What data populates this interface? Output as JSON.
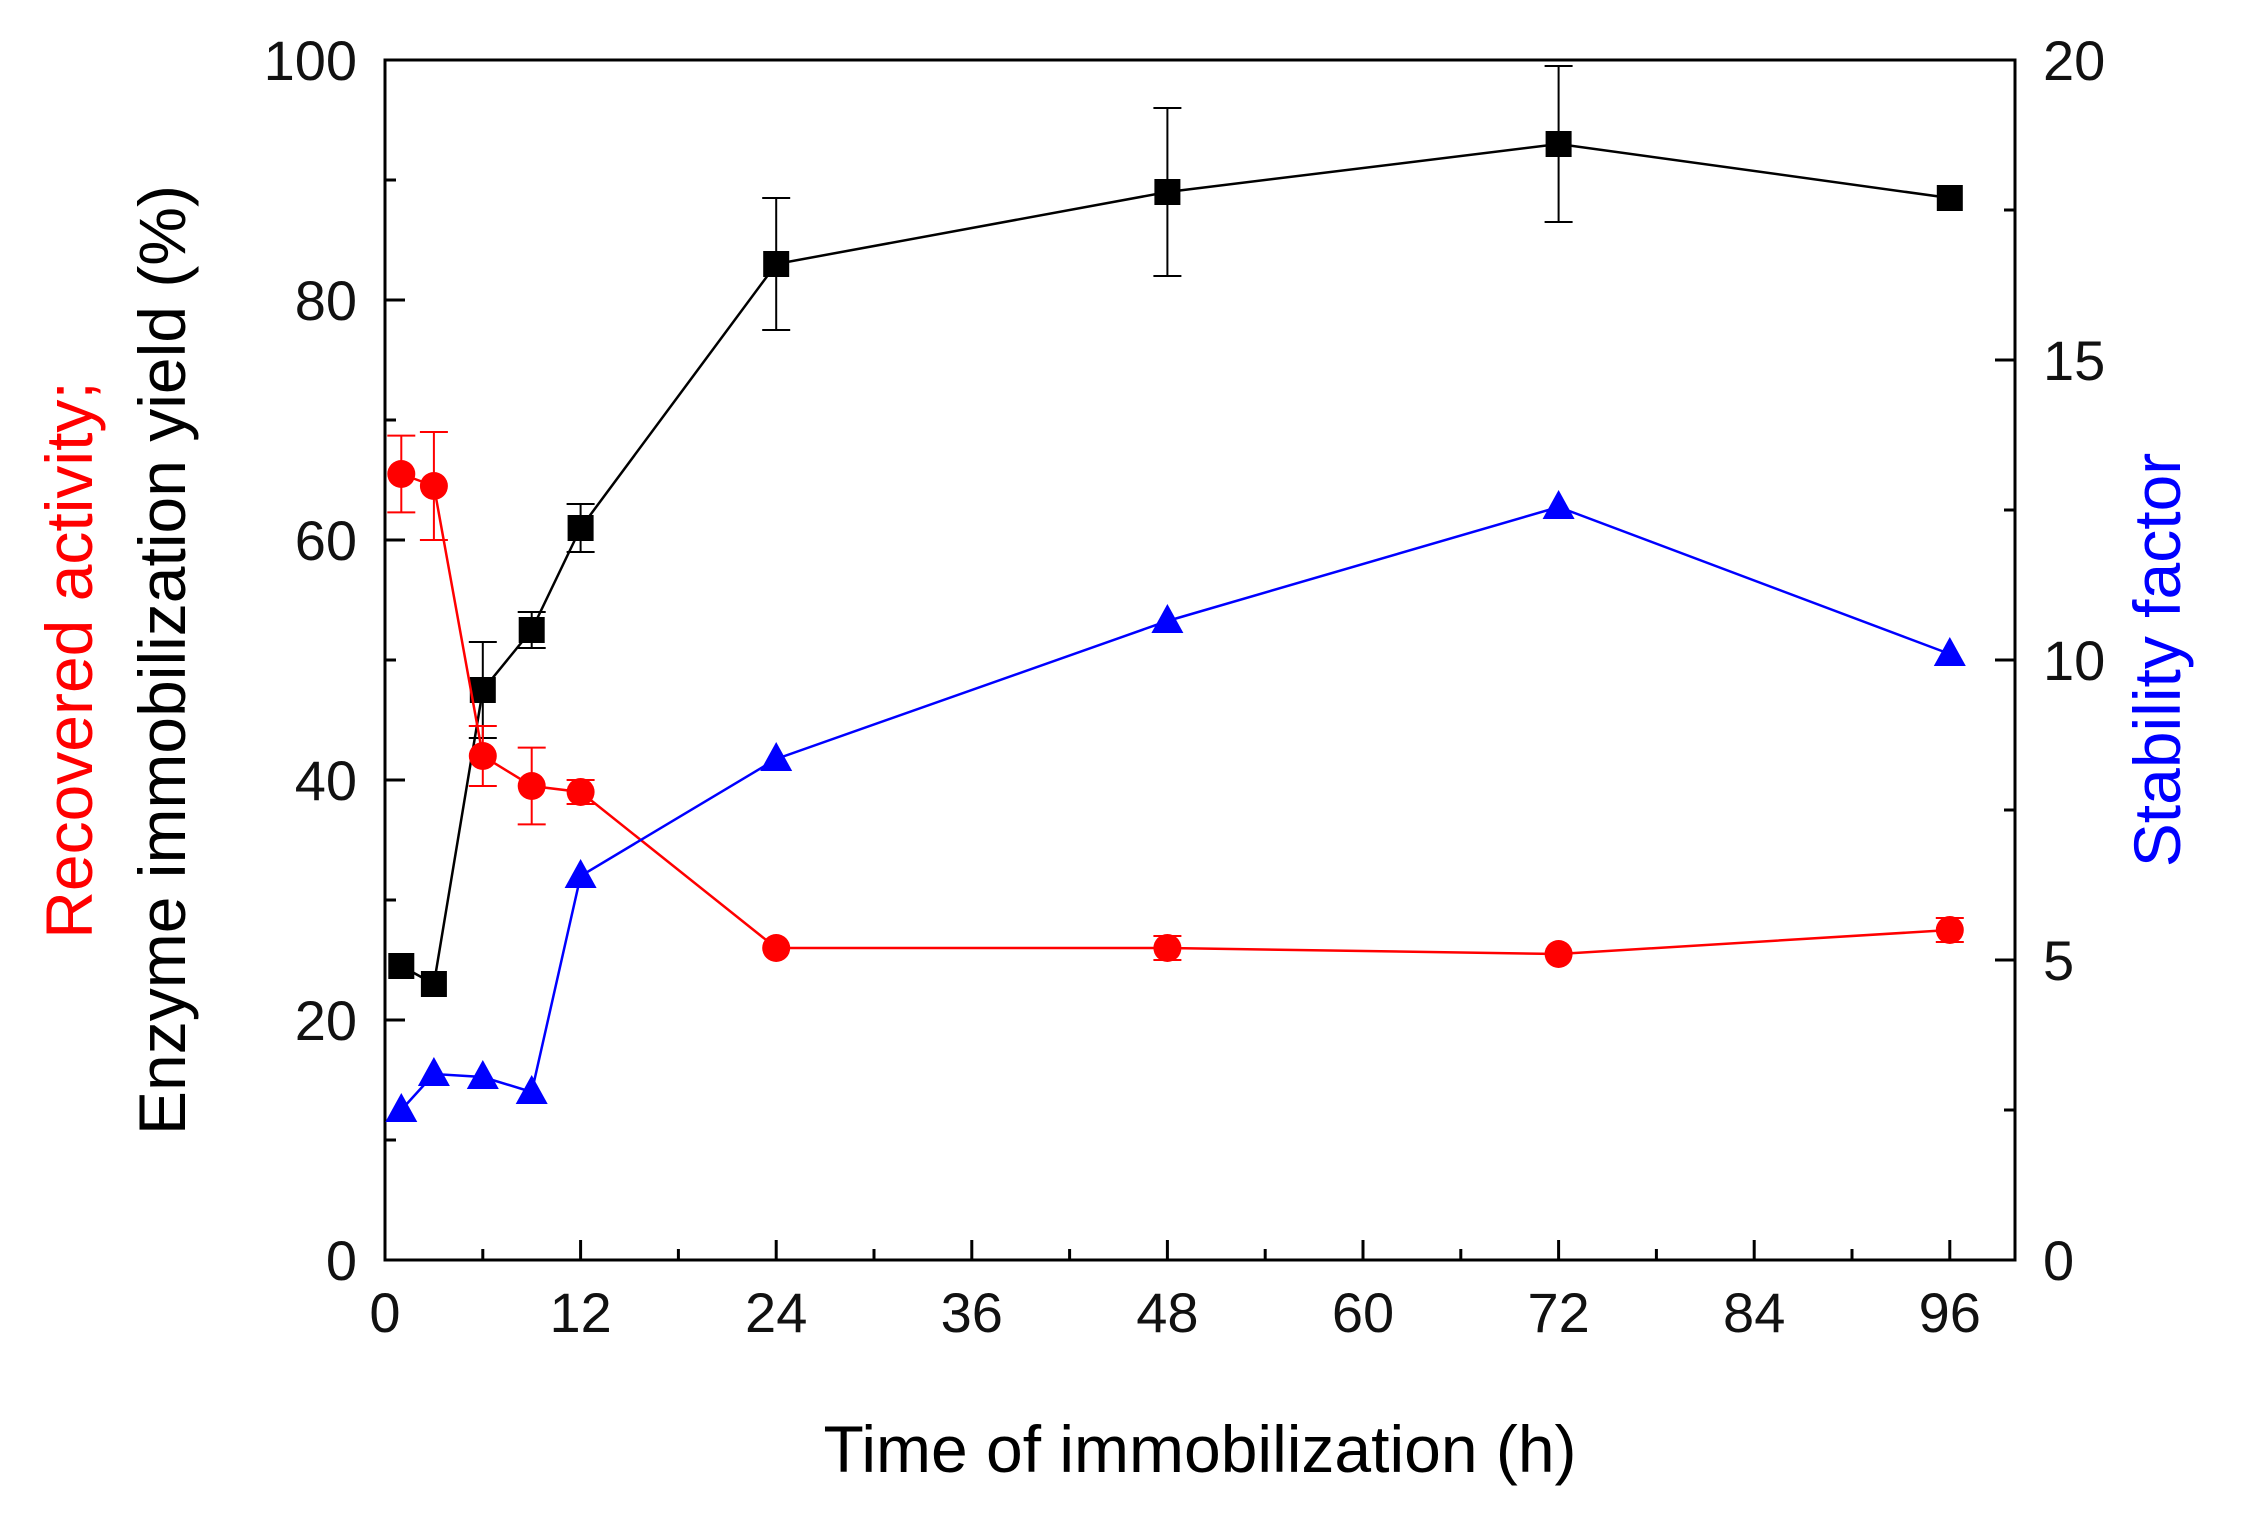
{
  "chart_data": {
    "type": "line",
    "xlabel": "Time of immobilization (h)",
    "ylabel_left": {
      "line1": "Recovered activity;",
      "line2": "Enzyme immobilization yield (%)",
      "line1_color": "#ff0000",
      "line2_color": "#000000"
    },
    "ylabel_right": "Stability factor",
    "ylabel_right_color": "#0000ff",
    "xlim": [
      0,
      100
    ],
    "ylim_left": [
      0,
      100
    ],
    "ylim_right": [
      0,
      20
    ],
    "x_ticks": [
      "0",
      "12",
      "24",
      "36",
      "48",
      "60",
      "72",
      "84",
      "96"
    ],
    "y_left_ticks": [
      "0",
      "20",
      "40",
      "60",
      "80",
      "100"
    ],
    "y_right_ticks": [
      "0",
      "5",
      "10",
      "15",
      "20"
    ],
    "series": [
      {
        "name": "Enzyme immobilization yield",
        "axis": "left",
        "marker": "square",
        "color": "#000000",
        "x": [
          1,
          3,
          6,
          9,
          12,
          24,
          48,
          72,
          96
        ],
        "y": [
          24.5,
          23,
          47.5,
          52.5,
          61,
          83,
          89,
          93,
          88.5
        ],
        "err": [
          0,
          0,
          4,
          1.5,
          2,
          5.5,
          7,
          6.5,
          0
        ]
      },
      {
        "name": "Recovered activity",
        "axis": "left",
        "marker": "circle",
        "color": "#ff0000",
        "x": [
          1,
          3,
          6,
          9,
          12,
          24,
          48,
          72,
          96
        ],
        "y": [
          65.5,
          64.5,
          42,
          39.5,
          39,
          26,
          26,
          25.5,
          27.5
        ],
        "err": [
          3.2,
          4.5,
          2.5,
          3.2,
          1,
          0,
          1,
          0,
          1
        ]
      },
      {
        "name": "Stability factor",
        "axis": "right",
        "marker": "triangle",
        "color": "#0000ff",
        "x": [
          1,
          3,
          6,
          9,
          12,
          24,
          48,
          72,
          96
        ],
        "y": [
          2.5,
          3.1,
          3.05,
          2.8,
          6.4,
          8.35,
          10.65,
          12.55,
          10.1
        ],
        "err": [
          0,
          0,
          0,
          0,
          0,
          0,
          0,
          0,
          0
        ]
      }
    ]
  }
}
